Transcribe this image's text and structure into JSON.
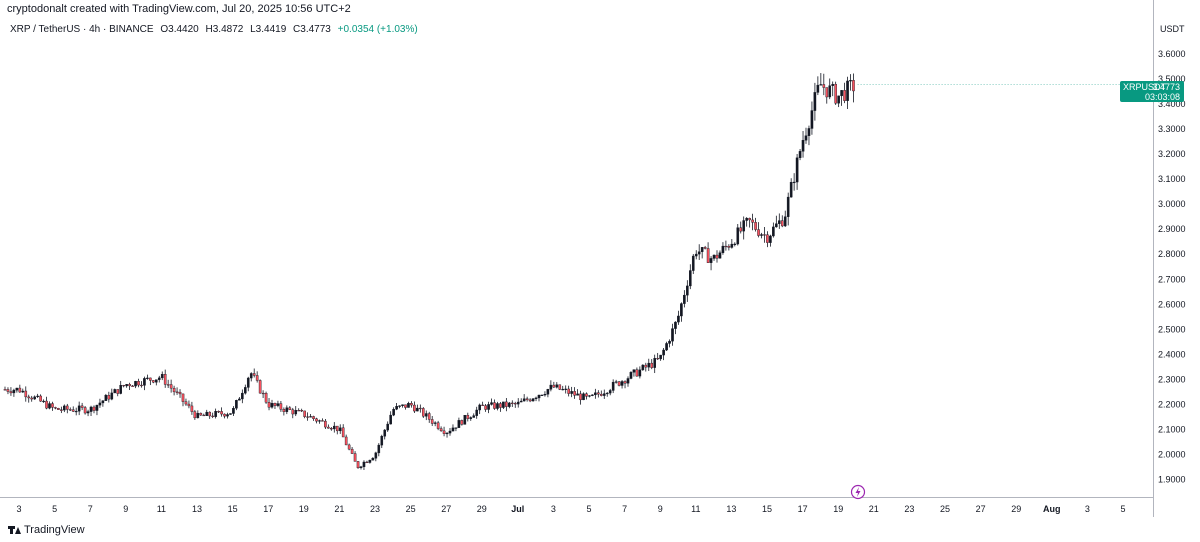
{
  "header": {
    "text": "cryptodonalt created with TradingView.com, Jul 20, 2025 10:56 UTC+2"
  },
  "legend": {
    "symbol": "XRP / TetherUS · 4h · BINANCE",
    "open": "O3.4420",
    "high": "H3.4872",
    "low": "L3.4419",
    "close": "C3.4773",
    "change": "+0.0354 (+1.03%)"
  },
  "price_label": {
    "symbol": "XRPUSDT",
    "price": "3.4773",
    "countdown": "03:03:08"
  },
  "brand": {
    "text": "TradingView"
  },
  "icons": {
    "event": "lightning-icon",
    "logo": "tradingview-logo-icon"
  },
  "colors": {
    "up": "#089981",
    "down": "#f23645",
    "candle_body_up": "#131722",
    "candle_body_down": "#f7525f",
    "axis_text": "#131722",
    "grid": "#ffffff"
  },
  "chart_data": {
    "type": "candlestick",
    "title": "",
    "currency_label": "USDT",
    "ylim": [
      1.83,
      3.76
    ],
    "y_ticks": [
      "3.6000",
      "3.5000",
      "3.4000",
      "3.3000",
      "3.2000",
      "3.1000",
      "3.0000",
      "2.9000",
      "2.8000",
      "2.7000",
      "2.6000",
      "2.5000",
      "2.4000",
      "2.3000",
      "2.2000",
      "2.1000",
      "2.0000",
      "1.9000"
    ],
    "x_ticks": [
      "3",
      "5",
      "7",
      "9",
      "11",
      "13",
      "15",
      "17",
      "19",
      "21",
      "23",
      "25",
      "27",
      "29",
      "Jul",
      "3",
      "5",
      "7",
      "9",
      "11",
      "13",
      "15",
      "17",
      "19",
      "21",
      "23",
      "25",
      "27",
      "29",
      "Aug",
      "3",
      "5"
    ],
    "daily_close_approx": [
      {
        "date": "Jun 3",
        "close": 2.26
      },
      {
        "date": "Jun 5",
        "close": 2.18
      },
      {
        "date": "Jun 7",
        "close": 2.18
      },
      {
        "date": "Jun 9",
        "close": 2.28
      },
      {
        "date": "Jun 11",
        "close": 2.31
      },
      {
        "date": "Jun 13",
        "close": 2.15
      },
      {
        "date": "Jun 15",
        "close": 2.17
      },
      {
        "date": "Jun 16",
        "close": 2.33
      },
      {
        "date": "Jun 17",
        "close": 2.2
      },
      {
        "date": "Jun 19",
        "close": 2.16
      },
      {
        "date": "Jun 21",
        "close": 2.1
      },
      {
        "date": "Jun 22",
        "close": 1.95
      },
      {
        "date": "Jun 23",
        "close": 2.0
      },
      {
        "date": "Jun 24",
        "close": 2.18
      },
      {
        "date": "Jun 25",
        "close": 2.2
      },
      {
        "date": "Jun 27",
        "close": 2.09
      },
      {
        "date": "Jun 29",
        "close": 2.19
      },
      {
        "date": "Jul 1",
        "close": 2.2
      },
      {
        "date": "Jul 3",
        "close": 2.27
      },
      {
        "date": "Jul 5",
        "close": 2.22
      },
      {
        "date": "Jul 7",
        "close": 2.3
      },
      {
        "date": "Jul 9",
        "close": 2.38
      },
      {
        "date": "Jul 10",
        "close": 2.54
      },
      {
        "date": "Jul 11",
        "close": 2.82
      },
      {
        "date": "Jul 12",
        "close": 2.78
      },
      {
        "date": "Jul 13",
        "close": 2.85
      },
      {
        "date": "Jul 14",
        "close": 2.93
      },
      {
        "date": "Jul 15",
        "close": 2.87
      },
      {
        "date": "Jul 16",
        "close": 2.95
      },
      {
        "date": "Jul 17",
        "close": 3.25
      },
      {
        "date": "Jul 18",
        "close": 3.48
      },
      {
        "date": "Jul 19",
        "close": 3.43
      },
      {
        "date": "Jul 20",
        "close": 3.4773
      }
    ]
  }
}
